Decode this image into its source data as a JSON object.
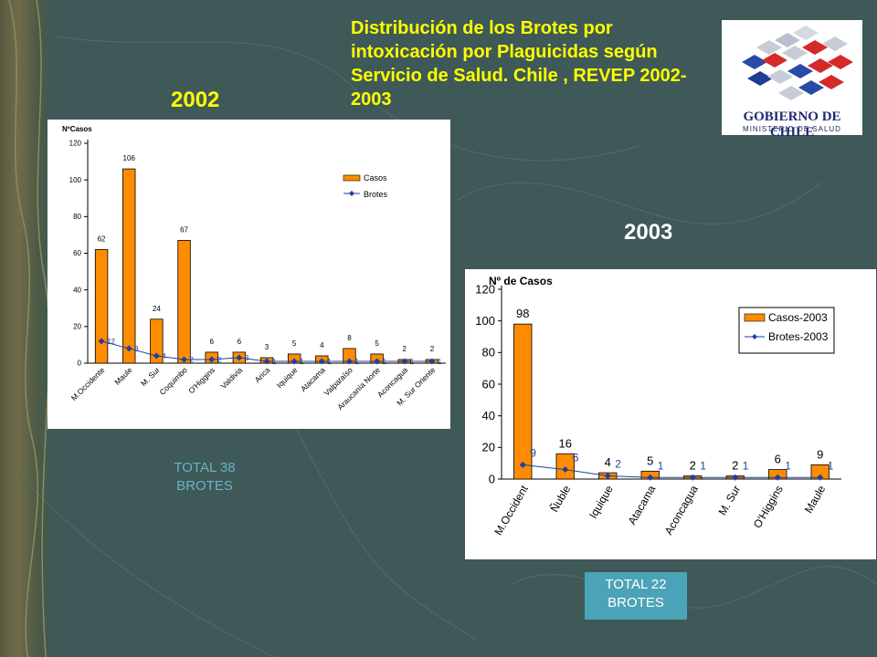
{
  "title": "Distribución de los Brotes por intoxicación por Plaguicidas según Servicio de Salud. Chile , REVEP 2002-2003",
  "colors": {
    "background": "#3e5957",
    "title": "#ffff00",
    "bar": "#ff8c00",
    "line": "#1f3fa0",
    "total_box": "#4ba3b7"
  },
  "logo": {
    "name": "GOBIERNO DE CHILE",
    "subtitle": "MINISTERIO DE SALUD"
  },
  "year_2002": "2002",
  "year_2003": "2003",
  "total_2002": {
    "line1": "TOTAL 38",
    "line2": "BROTES"
  },
  "total_2003": {
    "line1": "TOTAL 22",
    "line2": "BROTES"
  },
  "chart_data": [
    {
      "type": "bar",
      "title": "2002",
      "ylabel": "NºCasos",
      "ylim": [
        0,
        120
      ],
      "yticks": [
        0,
        20,
        40,
        60,
        80,
        100,
        120
      ],
      "categories": [
        "M.Occidente",
        "Maule",
        "M. Sur",
        "Coquimbo",
        "O'Higgins",
        "Valdivia",
        "Arica",
        "Iquique",
        "Atacama",
        "Valparaíso",
        "Araucanía Norte",
        "Aconcagua",
        "M. Sur Oriente"
      ],
      "series": [
        {
          "name": "Casos",
          "kind": "bar",
          "values": [
            62,
            106,
            24,
            67,
            6,
            6,
            3,
            5,
            4,
            8,
            5,
            2,
            2
          ]
        },
        {
          "name": "Brotes",
          "kind": "line",
          "values": [
            12,
            8,
            4,
            2,
            2,
            3,
            1,
            1,
            1,
            1,
            1,
            1,
            1
          ]
        }
      ],
      "legend": [
        "Casos",
        "Brotes"
      ]
    },
    {
      "type": "bar",
      "title": "2003",
      "ylabel": "Nº de Casos",
      "ylim": [
        0,
        120
      ],
      "yticks": [
        0,
        20,
        40,
        60,
        80,
        100,
        120
      ],
      "categories": [
        "M.Occident",
        "Ñuble",
        "Iquique",
        "Atacama",
        "Aconcagua",
        "M. Sur",
        "O'Higgins",
        "Maule"
      ],
      "series": [
        {
          "name": "Casos-2003",
          "kind": "bar",
          "values": [
            98,
            16,
            4,
            5,
            2,
            2,
            6,
            9
          ]
        },
        {
          "name": "Brotes-2003",
          "kind": "line",
          "values": [
            9,
            6,
            2,
            1,
            1,
            1,
            1,
            1
          ]
        }
      ],
      "legend": [
        "Casos-2003",
        "Brotes-2003"
      ]
    }
  ]
}
